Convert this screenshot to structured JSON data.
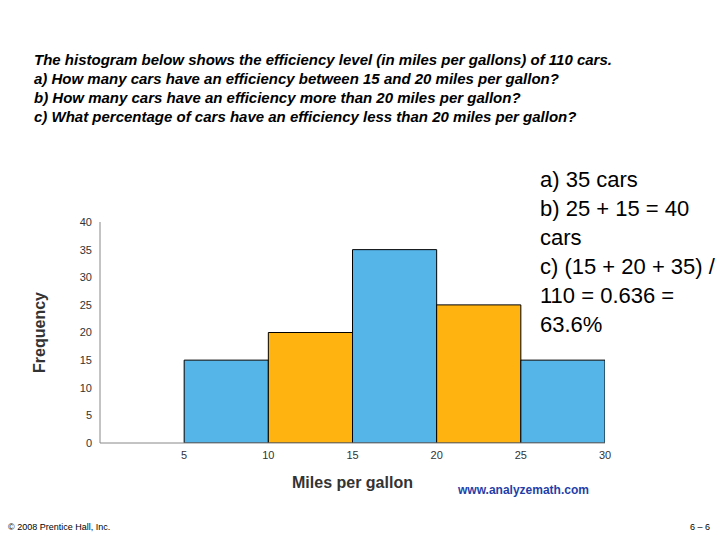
{
  "slide": {
    "question": [
      "The histogram below shows the efficiency level (in miles per gallons) of 110 cars.",
      "a) How many cars have an efficiency between 15 and 20 miles per gallon?",
      "b) How many cars have an efficiency more than 20 miles per gallon?",
      "c) What percentage of cars have  an efficiency less than 20 miles per gallon?"
    ],
    "answers": [
      "a) 35 cars",
      "b) 25 + 15 = 40 cars",
      "c) (15 + 20 + 35) / 110 = 0.636 = 63.6%"
    ],
    "footer_left": "© 2008 Prentice Hall, Inc.",
    "footer_right": "6 – 6"
  },
  "chart_data": {
    "type": "histogram",
    "bins": [
      5,
      10,
      15,
      20,
      25,
      30
    ],
    "values": [
      15,
      20,
      35,
      25,
      15
    ],
    "colors": [
      "#55b4e8",
      "#ffb310",
      "#55b4e8",
      "#ffb310",
      "#55b4e8"
    ],
    "x_label": "Miles per gallon",
    "y_label": "Frequency",
    "xlim": [
      0,
      30
    ],
    "xticks": [
      5,
      10,
      15,
      20,
      25,
      30
    ],
    "ylim": [
      0,
      40
    ],
    "yticks": [
      0,
      5,
      10,
      15,
      20,
      25,
      30,
      35,
      40
    ],
    "grid": false,
    "annotations": [
      "www.analyzemath.com"
    ]
  }
}
